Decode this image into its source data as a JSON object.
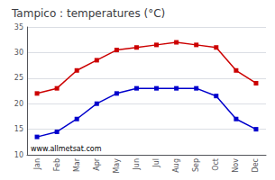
{
  "chart_data": {
    "type": "line",
    "title": "Tampico : temperatures (°C)",
    "categories": [
      "Jan",
      "Feb",
      "Mar",
      "Apr",
      "May",
      "Jun",
      "Jul",
      "Aug",
      "Sep",
      "Oct",
      "Nov",
      "Dec"
    ],
    "series": [
      {
        "color": "#cc0000",
        "marker": "square",
        "values": [
          22,
          23,
          26.5,
          28.5,
          30.5,
          31,
          31.5,
          32,
          31.5,
          31,
          26.5,
          24
        ]
      },
      {
        "color": "#0000cc",
        "marker": "square",
        "values": [
          13.5,
          14.5,
          17,
          20,
          22,
          23,
          23,
          23,
          23,
          21.5,
          17,
          15
        ]
      }
    ],
    "ylim": [
      10,
      35
    ],
    "yticks": [
      10,
      15,
      20,
      25,
      30,
      35
    ],
    "grid": true,
    "annotations": [
      "www.allmetsat.com"
    ]
  }
}
